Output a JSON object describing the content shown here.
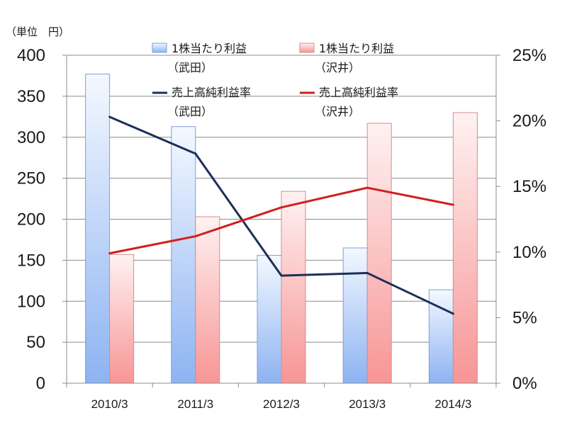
{
  "chart_data": {
    "type": "bar+line",
    "title": "",
    "unit_label": "（単位　円）",
    "categories": [
      "2010/3",
      "2011/3",
      "2012/3",
      "2013/3",
      "2014/3"
    ],
    "bar_series": [
      {
        "name": "1株当たり利益",
        "sub": "（武田）",
        "values": [
          377,
          313,
          156,
          165,
          114
        ],
        "color": "#a7c4f2"
      },
      {
        "name": "1株当たり利益",
        "sub": "（沢井）",
        "values": [
          157,
          203,
          234,
          317,
          330
        ],
        "color": "#f7a0a0"
      }
    ],
    "line_series": [
      {
        "name": "売上高純利益率",
        "sub": "（武田）",
        "values": [
          0.203,
          0.175,
          0.082,
          0.084,
          0.053
        ],
        "color": "#1b2f5a"
      },
      {
        "name": "売上高純利益率",
        "sub": "（沢井）",
        "values": [
          0.099,
          0.112,
          0.134,
          0.149,
          0.136
        ],
        "color": "#d11f1f"
      }
    ],
    "y_left": {
      "min": 0,
      "max": 400,
      "ticks": [
        "0",
        "50",
        "100",
        "150",
        "200",
        "250",
        "300",
        "350",
        "400"
      ]
    },
    "y_right": {
      "min": 0,
      "max": 0.25,
      "ticks": [
        "0%",
        "5%",
        "10%",
        "15%",
        "20%",
        "25%"
      ]
    },
    "grid": true,
    "legend_position": "top"
  }
}
